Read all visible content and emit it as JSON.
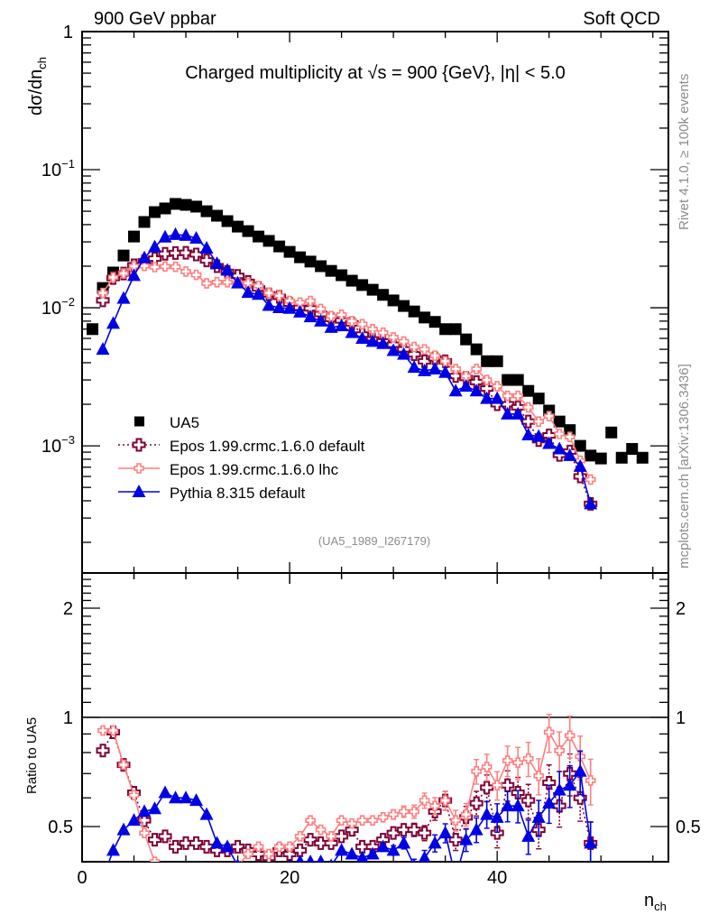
{
  "header": {
    "left_label": "900 GeV ppbar",
    "right_label": "Soft QCD"
  },
  "side_labels": {
    "top": "Rivet 4.1.0, ≥ 100k events",
    "bottom": "mcplots.cern.ch [arXiv:1306.3436]"
  },
  "chart_data": [
    {
      "type": "scatter",
      "panel": "main",
      "title": "Charged multiplicity at √s = 900 {GeV}, |η| < 5.0",
      "ylabel_main": "dσ/dn",
      "ylabel_sub": "ch",
      "xlabel_main": "n",
      "xlabel_sub": "ch",
      "yscale": "log",
      "ylim": [
        0.00012,
        1
      ],
      "xlim": [
        0,
        56.5
      ],
      "y_ticks": [
        {
          "value": 1,
          "label": "1"
        },
        {
          "value": 0.1,
          "label": "10",
          "exp": "−1"
        },
        {
          "value": 0.01,
          "label": "10",
          "exp": "−2"
        },
        {
          "value": 0.001,
          "label": "10",
          "exp": "−3"
        }
      ],
      "analysis_label": "(UA5_1989_I267179)",
      "legend_position": "bottom-left",
      "series": [
        {
          "name": "UA5",
          "color": "#000000",
          "marker": "square",
          "line": "none",
          "x": [
            1,
            2,
            3,
            4,
            5,
            6,
            7,
            8,
            9,
            10,
            11,
            12,
            13,
            14,
            15,
            16,
            17,
            18,
            19,
            20,
            21,
            22,
            23,
            24,
            25,
            26,
            27,
            28,
            29,
            30,
            31,
            32,
            33,
            34,
            35,
            36,
            37,
            38,
            39,
            40,
            41,
            42,
            43,
            44,
            45,
            46,
            47,
            48,
            49,
            50,
            51,
            52,
            53,
            54
          ],
          "y": [
            0.007,
            0.0139,
            0.018,
            0.0239,
            0.0328,
            0.0418,
            0.0493,
            0.0524,
            0.0565,
            0.0556,
            0.054,
            0.05,
            0.0464,
            0.0424,
            0.0387,
            0.0359,
            0.0328,
            0.0305,
            0.0278,
            0.0254,
            0.0232,
            0.0216,
            0.02,
            0.0185,
            0.0172,
            0.0157,
            0.0146,
            0.0135,
            0.0124,
            0.0113,
            0.0103,
            0.0094,
            0.0085,
            0.0079,
            0.007,
            0.007,
            0.0059,
            0.005,
            0.0041,
            0.0041,
            0.003,
            0.003,
            0.0025,
            0.0022,
            0.0018,
            0.0015,
            0.0013,
            0.001,
            0.00085,
            0.00081,
            0.00125,
            0.00082,
            0.00095,
            0.00082
          ]
        },
        {
          "name": "Epos 1.99.crmc.1.6.0 default",
          "color": "#800033",
          "marker": "open-cross",
          "line": "dotted",
          "x": [
            2,
            3,
            4,
            5,
            6,
            7,
            8,
            9,
            10,
            11,
            12,
            13,
            14,
            15,
            16,
            17,
            18,
            19,
            20,
            21,
            22,
            23,
            24,
            25,
            26,
            27,
            28,
            29,
            30,
            31,
            32,
            33,
            34,
            35,
            36,
            37,
            38,
            39,
            40,
            41,
            42,
            43,
            44,
            45,
            46,
            47,
            48,
            49
          ],
          "y": [
            0.0113,
            0.0164,
            0.0177,
            0.0203,
            0.0217,
            0.0227,
            0.0246,
            0.0249,
            0.025,
            0.0243,
            0.022,
            0.02,
            0.0182,
            0.017,
            0.0154,
            0.0138,
            0.0125,
            0.012,
            0.0107,
            0.01,
            0.0099,
            0.009,
            0.0083,
            0.0081,
            0.0077,
            0.0064,
            0.0059,
            0.0057,
            0.0054,
            0.005,
            0.0046,
            0.0041,
            0.0043,
            0.0041,
            0.0032,
            0.0031,
            0.0029,
            0.0026,
            0.002,
            0.002,
            0.0019,
            0.0015,
            0.0011,
            0.00119,
            0.00086,
            0.00091,
            0.0006,
            0.00038
          ]
        },
        {
          "name": "Epos 1.99.crmc.1.6.0 lhc",
          "color": "#ff7f7f",
          "marker": "open-cross-small",
          "line": "solid",
          "x": [
            2,
            3,
            4,
            5,
            6,
            7,
            8,
            9,
            10,
            11,
            12,
            13,
            14,
            15,
            16,
            17,
            18,
            19,
            20,
            21,
            22,
            23,
            24,
            25,
            26,
            27,
            28,
            29,
            30,
            31,
            32,
            33,
            34,
            35,
            36,
            37,
            38,
            39,
            40,
            41,
            42,
            43,
            44,
            45,
            46,
            47,
            48,
            49
          ],
          "y": [
            0.0128,
            0.0166,
            0.0177,
            0.02,
            0.0201,
            0.0197,
            0.0199,
            0.0198,
            0.0183,
            0.0173,
            0.015,
            0.0153,
            0.0153,
            0.0151,
            0.0151,
            0.0144,
            0.0128,
            0.0122,
            0.0112,
            0.0109,
            0.0112,
            0.0098,
            0.0087,
            0.0089,
            0.008,
            0.0076,
            0.007,
            0.0066,
            0.0061,
            0.0057,
            0.0052,
            0.005,
            0.0045,
            0.0041,
            0.0036,
            0.0032,
            0.0036,
            0.003,
            0.0027,
            0.0023,
            0.0023,
            0.0019,
            0.0015,
            0.00164,
            0.00122,
            0.00116,
            0.00078,
            0.00057
          ]
        },
        {
          "name": "Pythia 8.315 default",
          "color": "#0000e6",
          "marker": "filled-triangle",
          "line": "solid",
          "x": [
            2,
            3,
            4,
            5,
            6,
            7,
            8,
            9,
            10,
            11,
            12,
            13,
            14,
            15,
            16,
            17,
            18,
            19,
            20,
            21,
            22,
            23,
            24,
            25,
            26,
            27,
            28,
            29,
            30,
            31,
            32,
            33,
            34,
            35,
            36,
            37,
            38,
            39,
            40,
            41,
            42,
            43,
            44,
            45,
            46,
            47,
            48,
            49
          ],
          "y": [
            0.005,
            0.0077,
            0.0117,
            0.0171,
            0.023,
            0.0276,
            0.0325,
            0.0339,
            0.0334,
            0.0319,
            0.027,
            0.0209,
            0.0187,
            0.0151,
            0.0129,
            0.0125,
            0.0104,
            0.01,
            0.0099,
            0.0093,
            0.0086,
            0.008,
            0.0072,
            0.0074,
            0.0066,
            0.006,
            0.0057,
            0.0055,
            0.0049,
            0.0046,
            0.0037,
            0.0035,
            0.0036,
            0.0034,
            0.0025,
            0.0027,
            0.0025,
            0.0022,
            0.0022,
            0.0017,
            0.0017,
            0.0012,
            0.00117,
            0.00104,
            0.00095,
            0.00085,
            0.00071,
            0.00038
          ]
        }
      ]
    },
    {
      "type": "scatter",
      "panel": "ratio",
      "ylabel": "Ratio to UA5",
      "yscale": "log",
      "ylim": [
        0.4,
        2.5
      ],
      "xlim": [
        0,
        56.5
      ],
      "y_ticks": [
        {
          "value": 0.5,
          "label": "0.5"
        },
        {
          "value": 1,
          "label": "1"
        },
        {
          "value": 2,
          "label": "2"
        }
      ],
      "x_ticks": [
        {
          "value": 0,
          "label": "0"
        },
        {
          "value": 20,
          "label": "20"
        },
        {
          "value": 40,
          "label": "40"
        }
      ],
      "series": [
        {
          "name": "Epos 1.99.crmc.1.6.0 default",
          "color": "#800033",
          "x": [
            2,
            3,
            4,
            5,
            6,
            7,
            8,
            9,
            10,
            11,
            12,
            13,
            14,
            15,
            16,
            17,
            18,
            19,
            20,
            21,
            22,
            23,
            24,
            25,
            26,
            27,
            28,
            29,
            30,
            31,
            32,
            33,
            34,
            35,
            36,
            37,
            38,
            39,
            40,
            41,
            42,
            43,
            44,
            45,
            46,
            47,
            48,
            49
          ],
          "y": [
            0.81,
            0.91,
            0.74,
            0.62,
            0.52,
            0.46,
            0.47,
            0.44,
            0.45,
            0.45,
            0.44,
            0.43,
            0.43,
            0.44,
            0.43,
            0.42,
            0.41,
            0.43,
            0.42,
            0.43,
            0.46,
            0.45,
            0.45,
            0.47,
            0.49,
            0.44,
            0.44,
            0.46,
            0.48,
            0.49,
            0.49,
            0.48,
            0.55,
            0.59,
            0.46,
            0.53,
            0.58,
            0.64,
            0.48,
            0.65,
            0.62,
            0.59,
            0.49,
            0.66,
            0.57,
            0.7,
            0.6,
            0.45
          ]
        },
        {
          "name": "Epos 1.99.crmc.1.6.0 lhc",
          "color": "#ff7f7f",
          "x": [
            2,
            3,
            4,
            5,
            6,
            7,
            8,
            9,
            10,
            11,
            12,
            13,
            14,
            15,
            16,
            17,
            18,
            19,
            20,
            21,
            22,
            23,
            24,
            25,
            26,
            27,
            28,
            29,
            30,
            31,
            32,
            33,
            34,
            35,
            36,
            37,
            38,
            39,
            40,
            41,
            42,
            43,
            44,
            45,
            46,
            47,
            48,
            49
          ],
          "y": [
            0.92,
            0.92,
            0.74,
            0.61,
            0.48,
            0.4,
            0.38,
            0.35,
            0.33,
            0.32,
            0.3,
            0.33,
            0.36,
            0.39,
            0.42,
            0.44,
            0.42,
            0.44,
            0.44,
            0.47,
            0.52,
            0.49,
            0.47,
            0.52,
            0.51,
            0.52,
            0.52,
            0.53,
            0.54,
            0.55,
            0.55,
            0.59,
            0.57,
            0.59,
            0.52,
            0.54,
            0.71,
            0.73,
            0.65,
            0.76,
            0.75,
            0.77,
            0.69,
            0.91,
            0.81,
            0.89,
            0.78,
            0.67
          ]
        },
        {
          "name": "Pythia 8.315 default",
          "color": "#0000e6",
          "x": [
            2,
            3,
            4,
            5,
            6,
            7,
            8,
            9,
            10,
            11,
            12,
            13,
            14,
            15,
            16,
            17,
            18,
            19,
            20,
            21,
            22,
            23,
            24,
            25,
            26,
            27,
            28,
            29,
            30,
            31,
            32,
            33,
            34,
            35,
            36,
            37,
            38,
            39,
            40,
            41,
            42,
            43,
            44,
            45,
            46,
            47,
            48,
            49
          ],
          "y": [
            0.36,
            0.43,
            0.49,
            0.52,
            0.55,
            0.56,
            0.62,
            0.6,
            0.6,
            0.59,
            0.54,
            0.45,
            0.44,
            0.39,
            0.36,
            0.38,
            0.34,
            0.36,
            0.39,
            0.4,
            0.4,
            0.4,
            0.39,
            0.43,
            0.42,
            0.41,
            0.42,
            0.44,
            0.43,
            0.45,
            0.39,
            0.41,
            0.45,
            0.48,
            0.36,
            0.46,
            0.49,
            0.54,
            0.53,
            0.57,
            0.57,
            0.47,
            0.53,
            0.58,
            0.63,
            0.65,
            0.71,
            0.45
          ]
        }
      ]
    }
  ]
}
